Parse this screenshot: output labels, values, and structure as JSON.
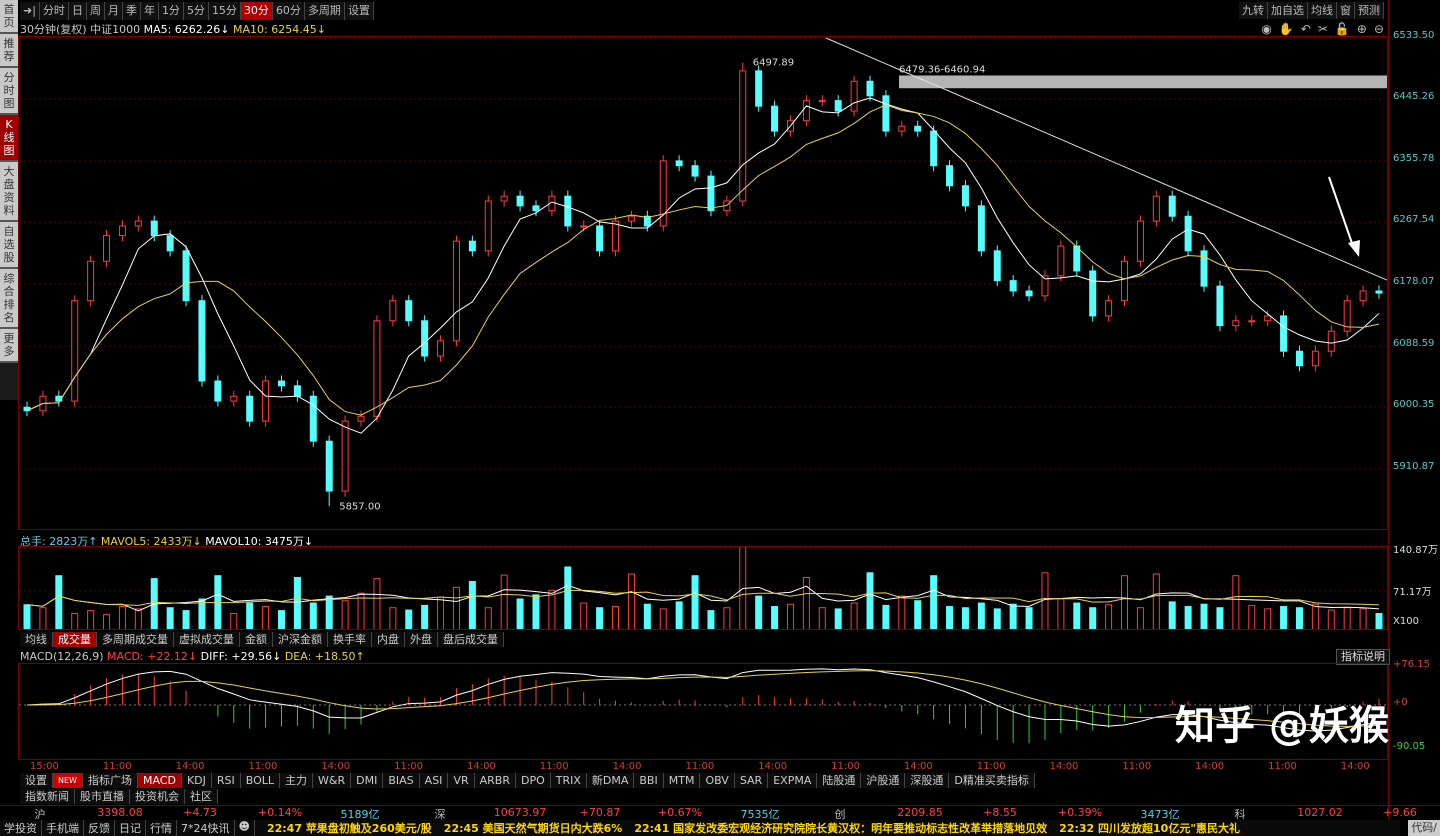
{
  "sidebar": {
    "items": [
      {
        "label": "首页",
        "active": false
      },
      {
        "label": "推荐",
        "active": false
      },
      {
        "label": "分时图",
        "active": false
      },
      {
        "label": "K线图",
        "active": true
      },
      {
        "label": "大盘资料",
        "active": false
      },
      {
        "label": "自选股",
        "active": false
      },
      {
        "label": "综合排名",
        "active": false
      },
      {
        "label": "更多",
        "active": false
      }
    ]
  },
  "toolbar": {
    "periods": [
      {
        "label": "分时"
      },
      {
        "label": "日"
      },
      {
        "label": "周"
      },
      {
        "label": "月"
      },
      {
        "label": "季"
      },
      {
        "label": "年"
      },
      {
        "label": "1分"
      },
      {
        "label": "5分"
      },
      {
        "label": "15分"
      },
      {
        "label": "30分",
        "active": true
      },
      {
        "label": "60分"
      },
      {
        "label": "多周期"
      },
      {
        "label": "设置"
      }
    ],
    "right": [
      {
        "label": "九转"
      },
      {
        "label": "加自选"
      },
      {
        "label": "均线"
      },
      {
        "label": "窗"
      },
      {
        "label": "预测"
      }
    ],
    "tools": [
      "eye-icon",
      "hand-icon",
      "undo-icon",
      "scissors-icon",
      "lock-icon",
      "zoom-in-icon",
      "zoom-out-icon"
    ]
  },
  "info": {
    "period": "30分钟(复权)",
    "name": "中证1000",
    "ma5_label": "MA5: 6262.26↓",
    "ma10_label": "MA10: 6254.45↓"
  },
  "price_axis": [
    "6533.50",
    "6445.26",
    "6355.78",
    "6267.54",
    "6178.07",
    "6088.59",
    "6000.35",
    "5910.87"
  ],
  "annotations": {
    "high": "6497.89",
    "low": "5857.00",
    "zone": "6479.36-6460.94"
  },
  "chart_data": {
    "type": "candlestick",
    "ylim": [
      5857,
      6533.5
    ],
    "closes": [
      5995,
      6016,
      6009,
      6154,
      6211,
      6248,
      6262,
      6269,
      6248,
      6226,
      6154,
      6038,
      6009,
      6016,
      5980,
      6038,
      6031,
      6016,
      5951,
      5879,
      5980,
      5987,
      6125,
      6154,
      6125,
      6074,
      6096,
      6240,
      6226,
      6298,
      6305,
      6291,
      6284,
      6305,
      6262,
      6262,
      6226,
      6269,
      6276,
      6262,
      6356,
      6349,
      6334,
      6284,
      6298,
      6486,
      6435,
      6399,
      6414,
      6443,
      6443,
      6428,
      6471,
      6450,
      6399,
      6406,
      6399,
      6349,
      6320,
      6291,
      6226,
      6183,
      6168,
      6161,
      6190,
      6233,
      6197,
      6132,
      6154,
      6211,
      6269,
      6305,
      6276,
      6226,
      6175,
      6118,
      6125,
      6125,
      6132,
      6081,
      6060,
      6081,
      6110,
      6154,
      6168,
      6165
    ],
    "high": 6497.89,
    "low": 5857.0,
    "zone": [
      6460.94,
      6479.36
    ],
    "volume": [
      45,
      40,
      95,
      30,
      35,
      28,
      42,
      38,
      90,
      40,
      35,
      55,
      95,
      30,
      48,
      42,
      35,
      92,
      48,
      60,
      52,
      65,
      90,
      40,
      36,
      44,
      58,
      75,
      85,
      40,
      96,
      55,
      62,
      70,
      110,
      48,
      40,
      42,
      98,
      46,
      38,
      50,
      95,
      35,
      40,
      145,
      60,
      42,
      46,
      92,
      40,
      38,
      48,
      100,
      44,
      60,
      52,
      95,
      42,
      40,
      48,
      38,
      46,
      40,
      100,
      55,
      48,
      40,
      45,
      95,
      40,
      98,
      50,
      42,
      46,
      40,
      95,
      44,
      38,
      42,
      40,
      46,
      36,
      40,
      38,
      30
    ]
  },
  "volume_panel": {
    "total": "总手: 2823万↑",
    "mavol5": "MAVOL5: 2433万↓",
    "mavol10": "MAVOL10: 3475万↓",
    "axis": [
      "140.87万",
      "71.17万",
      "X100"
    ],
    "tabs": [
      {
        "label": "均线"
      },
      {
        "label": "成交量",
        "active": true
      },
      {
        "label": "多周期成交量"
      },
      {
        "label": "虚拟成交量"
      },
      {
        "label": "金额"
      },
      {
        "label": "沪深金额"
      },
      {
        "label": "换手率"
      },
      {
        "label": "内盘"
      },
      {
        "label": "外盘"
      },
      {
        "label": "盘后成交量"
      }
    ]
  },
  "macd_panel": {
    "name": "MACD(12,26,9)",
    "macd": "MACD: +22.12↓",
    "diff": "DIFF: +29.56↓",
    "dea": "DEA: +18.50↑",
    "help": "指标说明",
    "axis": [
      "+76.15",
      "+0",
      "-90.05"
    ]
  },
  "time_axis": [
    "15:00",
    "11:00",
    "14:00",
    "11:00",
    "14:00",
    "11:00",
    "14:00",
    "11:00",
    "14:00",
    "11:00",
    "14:00",
    "11:00",
    "14:00",
    "11:00",
    "14:00",
    "11:00",
    "14:00",
    "11:00",
    "14:00"
  ],
  "indicator_tabs": [
    {
      "label": "设置"
    },
    {
      "label": "NEW",
      "badge": true
    },
    {
      "label": "指标广场"
    },
    {
      "label": "MACD",
      "active": true
    },
    {
      "label": "KDJ"
    },
    {
      "label": "RSI"
    },
    {
      "label": "BOLL"
    },
    {
      "label": "主力"
    },
    {
      "label": "W&R"
    },
    {
      "label": "DMI"
    },
    {
      "label": "BIAS"
    },
    {
      "label": "ASI"
    },
    {
      "label": "VR"
    },
    {
      "label": "ARBR"
    },
    {
      "label": "DPO"
    },
    {
      "label": "TRIX"
    },
    {
      "label": "新DMA"
    },
    {
      "label": "BBI"
    },
    {
      "label": "MTM"
    },
    {
      "label": "OBV"
    },
    {
      "label": "SAR"
    },
    {
      "label": "EXPMA"
    },
    {
      "label": "陆股通"
    },
    {
      "label": "沪股通"
    },
    {
      "label": "深股通"
    },
    {
      "label": "D精准买卖指标"
    }
  ],
  "info_tabs": [
    {
      "label": "指数新闻"
    },
    {
      "label": "股市直播"
    },
    {
      "label": "投资机会"
    },
    {
      "label": "社区"
    }
  ],
  "quotes": [
    {
      "text": "沪",
      "c": "#bbb"
    },
    {
      "text": "3398.08",
      "c": "#ff4040"
    },
    {
      "text": "+4.73",
      "c": "#ff4040"
    },
    {
      "text": "+0.14%",
      "c": "#ff4040"
    },
    {
      "text": "5189亿",
      "c": "#5ad0e0"
    },
    {
      "text": "深",
      "c": "#bbb"
    },
    {
      "text": "10673.97",
      "c": "#ff4040"
    },
    {
      "text": "+70.87",
      "c": "#ff4040"
    },
    {
      "text": "+0.67%",
      "c": "#ff4040"
    },
    {
      "text": "7535亿",
      "c": "#5ad0e0"
    },
    {
      "text": "创",
      "c": "#bbb"
    },
    {
      "text": "2209.85",
      "c": "#ff4040"
    },
    {
      "text": "+8.55",
      "c": "#ff4040"
    },
    {
      "text": "+0.39%",
      "c": "#ff4040"
    },
    {
      "text": "3473亿",
      "c": "#5ad0e0"
    },
    {
      "text": "科",
      "c": "#bbb"
    },
    {
      "text": "1027.02",
      "c": "#ff4040"
    },
    {
      "text": "+9.66",
      "c": "#ff4040"
    }
  ],
  "footer_links": [
    "学投资",
    "手机端",
    "反馈",
    "日记",
    "行情",
    "7*24快讯"
  ],
  "news": [
    "22:47 苹果盘初触及260美元/股",
    "22:45 美国天然气期货日内大跌6%",
    "22:41 国家发改委宏观经济研究院院长黄汉权：明年要推动标志性改革举措落地见效",
    "22:32 四川发放超10亿元\"惠民大礼"
  ],
  "code_box": "代码/",
  "watermark": "知乎 @妖猴",
  "colors": {
    "up": "#ff3c3c",
    "down": "#54ffff",
    "ma5": "#ffffff",
    "ma10": "#e8d24a",
    "grid": "#5a0000"
  }
}
